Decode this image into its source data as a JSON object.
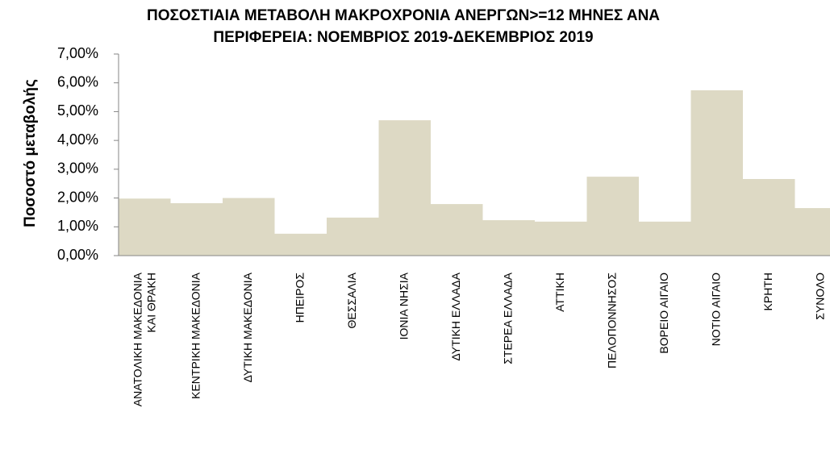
{
  "chart_data": {
    "type": "bar",
    "title": "ΠΟΣΟΣΤΙΑΙΑ ΜΕΤΑΒΟΛΗ ΜΑΚΡΟΧΡΟΝΙΑ ΑΝΕΡΓΩΝ>=12 ΜΗΝΕΣ ΑΝΑ\nΠΕΡΙΦΕΡΕΙΑ: ΝΟΕΜΒΡΙΟΣ 2019-ΔΕΚΕΜΒΡΙΟΣ 2019",
    "y_label": "Ποσοστό μεταβολής",
    "categories": [
      "ΑΝΑΤΟΛΙΚΗ ΜΑΚΕΔΟΝΙΑ\nΚΑΙ ΘΡΑΚΗ",
      "ΚΕΝΤΡΙΚΗ ΜΑΚΕΔΟΝΙΑ",
      "ΔΥΤΙΚΗ ΜΑΚΕΔΟΝΙΑ",
      "ΗΠΕΙΡΟΣ",
      "ΘΕΣΣΑΛΙΑ",
      "ΙΟΝΙΑ ΝΗΣΙΑ",
      "ΔΥΤΙΚΗ ΕΛΛΑΔΑ",
      "ΣΤΕΡΕΑ ΕΛΛΑΔΑ",
      "ΑΤΤΙΚΗ",
      "ΠΕΛΟΠΟΝΝΗΣΟΣ",
      "ΒΟΡΕΙΟ ΑΙΓΑΙΟ",
      "ΝΟΤΙΟ ΑΙΓΑΙΟ",
      "ΚΡΗΤΗ",
      "ΣΥΝΟΛΟ"
    ],
    "values": [
      1.98,
      1.82,
      2.0,
      0.76,
      1.32,
      4.7,
      1.79,
      1.23,
      1.18,
      2.74,
      1.18,
      5.74,
      2.66,
      1.65
    ],
    "color": "#ddd9c4",
    "ylim": [
      0,
      7
    ],
    "yticks": [
      {
        "value": 0,
        "label": "0,00%"
      },
      {
        "value": 1,
        "label": "1,00%"
      },
      {
        "value": 2,
        "label": "2,00%"
      },
      {
        "value": 3,
        "label": "3,00%"
      },
      {
        "value": 4,
        "label": "4,00%"
      },
      {
        "value": 5,
        "label": "5,00%"
      },
      {
        "value": 6,
        "label": "6,00%"
      },
      {
        "value": 7,
        "label": "7,00%"
      }
    ],
    "grid": false
  }
}
